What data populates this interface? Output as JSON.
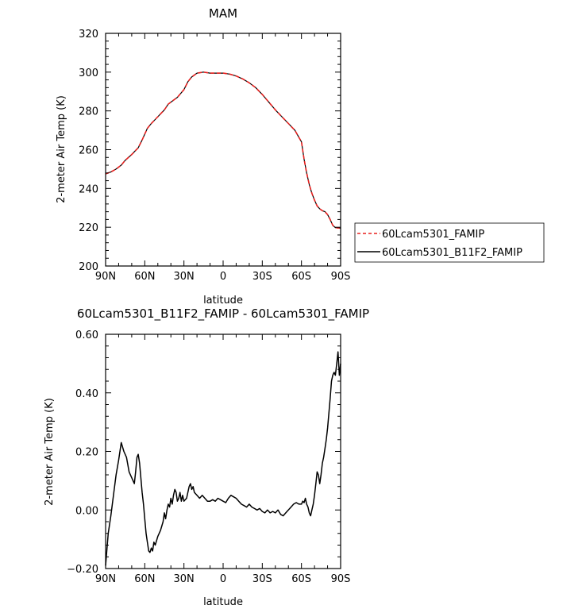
{
  "chart_data": [
    {
      "type": "line",
      "title": "MAM",
      "xlabel": "latitude",
      "ylabel": "2-meter Air Temp (K)",
      "xlim": [
        90,
        -90
      ],
      "ylim": [
        200,
        320
      ],
      "x_ticks": [
        {
          "value": 90,
          "label": "90N"
        },
        {
          "value": 60,
          "label": "60N"
        },
        {
          "value": 30,
          "label": "30N"
        },
        {
          "value": 0,
          "label": "0"
        },
        {
          "value": -30,
          "label": "30S"
        },
        {
          "value": -60,
          "label": "60S"
        },
        {
          "value": -90,
          "label": "90S"
        }
      ],
      "y_ticks": [
        {
          "value": 200,
          "label": "200"
        },
        {
          "value": 220,
          "label": "220"
        },
        {
          "value": 240,
          "label": "240"
        },
        {
          "value": 260,
          "label": "260"
        },
        {
          "value": 280,
          "label": "280"
        },
        {
          "value": 300,
          "label": "300"
        },
        {
          "value": 320,
          "label": "320"
        }
      ],
      "legend": {
        "placement": "right",
        "entries": [
          {
            "name": "60Lcam5301_FAMIP",
            "color": "#e8201e",
            "dash": "dashed"
          },
          {
            "name": "60Lcam5301_B11F2_FAMIP",
            "color": "#000000",
            "dash": "solid"
          }
        ]
      },
      "series": [
        {
          "name": "60Lcam5301_FAMIP",
          "x": [
            90,
            86,
            82,
            78,
            75,
            70,
            65,
            62,
            58,
            55,
            50,
            45,
            42,
            38,
            35,
            30,
            27,
            24,
            20,
            15,
            10,
            5,
            0,
            -5,
            -10,
            -15,
            -20,
            -25,
            -30,
            -35,
            -40,
            -45,
            -50,
            -55,
            -60,
            -62,
            -64,
            -66,
            -68,
            -70,
            -72,
            -74,
            -76,
            -78,
            -80,
            -82,
            -84,
            -86,
            -88,
            -90
          ],
          "y": [
            247.5,
            248.5,
            250,
            252,
            254.5,
            257.5,
            261,
            265,
            271,
            273.5,
            277,
            280.5,
            283.5,
            285.5,
            287,
            291,
            295,
            297.5,
            299.5,
            300,
            299.5,
            299.5,
            299.5,
            299,
            298,
            296.5,
            294.5,
            292,
            288.5,
            284.5,
            280.5,
            277,
            273.5,
            270,
            264,
            255,
            248,
            242,
            237.5,
            234,
            231,
            229.5,
            228.5,
            228,
            226.5,
            224,
            221,
            219.8,
            219.6,
            219.5
          ]
        },
        {
          "name": "60Lcam5301_B11F2_FAMIP",
          "x": [
            90,
            86,
            82,
            78,
            75,
            70,
            65,
            62,
            58,
            55,
            50,
            45,
            42,
            38,
            35,
            30,
            27,
            24,
            20,
            15,
            10,
            5,
            0,
            -5,
            -10,
            -15,
            -20,
            -25,
            -30,
            -35,
            -40,
            -45,
            -50,
            -55,
            -60,
            -62,
            -64,
            -66,
            -68,
            -70,
            -72,
            -74,
            -76,
            -78,
            -80,
            -82,
            -84,
            -86,
            -88,
            -90
          ],
          "y": [
            247.5,
            248.5,
            250,
            252,
            254.5,
            257.5,
            261,
            265,
            271,
            273.5,
            277,
            280.5,
            283.5,
            285.5,
            287,
            291,
            295,
            297.5,
            299.5,
            300,
            299.5,
            299.5,
            299.5,
            299,
            298,
            296.5,
            294.5,
            292,
            288.5,
            284.5,
            280.5,
            277,
            273.5,
            270,
            264,
            255,
            248,
            242,
            237.5,
            234,
            231,
            229.5,
            228.5,
            228,
            226.5,
            224,
            221,
            219.8,
            219.6,
            219.5
          ]
        }
      ]
    },
    {
      "type": "line",
      "title": "60Lcam5301_B11F2_FAMIP - 60Lcam5301_FAMIP",
      "xlabel": "latitude",
      "ylabel": "2-meter Air Temp (K)",
      "xlim": [
        90,
        -90
      ],
      "ylim": [
        -0.2,
        0.6
      ],
      "x_ticks": [
        {
          "value": 90,
          "label": "90N"
        },
        {
          "value": 60,
          "label": "60N"
        },
        {
          "value": 30,
          "label": "30N"
        },
        {
          "value": 0,
          "label": "0"
        },
        {
          "value": -30,
          "label": "30S"
        },
        {
          "value": -60,
          "label": "60S"
        },
        {
          "value": -90,
          "label": "90S"
        }
      ],
      "y_ticks": [
        {
          "value": -0.2,
          "label": "−0.20"
        },
        {
          "value": 0.0,
          "label": "0.00"
        },
        {
          "value": 0.2,
          "label": "0.20"
        },
        {
          "value": 0.4,
          "label": "0.40"
        },
        {
          "value": 0.6,
          "label": "0.60"
        }
      ],
      "series": [
        {
          "name": "",
          "color": "#000000",
          "x": [
            90,
            88,
            86,
            84,
            82,
            80,
            78,
            76,
            74,
            72,
            70,
            68,
            67,
            66,
            65,
            64,
            63,
            62,
            61,
            60,
            59,
            58,
            57,
            56,
            55,
            54,
            53,
            52,
            50,
            48,
            46,
            45,
            44,
            43,
            42,
            41,
            40,
            39,
            38,
            37,
            36,
            35,
            34,
            33,
            32,
            31,
            30,
            29,
            28,
            27,
            26,
            25,
            24,
            23,
            22,
            20,
            18,
            16,
            14,
            12,
            10,
            8,
            6,
            4,
            2,
            0,
            -2,
            -4,
            -6,
            -8,
            -10,
            -12,
            -14,
            -16,
            -18,
            -20,
            -22,
            -24,
            -26,
            -28,
            -30,
            -32,
            -34,
            -36,
            -38,
            -40,
            -42,
            -44,
            -46,
            -48,
            -50,
            -52,
            -54,
            -56,
            -58,
            -60,
            -61,
            -62,
            -63,
            -64,
            -65,
            -66,
            -67,
            -68,
            -69,
            -70,
            -71,
            -72,
            -73,
            -74,
            -75,
            -76,
            -77,
            -78,
            -79,
            -80,
            -81,
            -82,
            -83,
            -84,
            -85,
            -86,
            -87,
            -88,
            -89,
            -90
          ],
          "y": [
            -0.19,
            -0.08,
            -0.02,
            0.05,
            0.12,
            0.17,
            0.23,
            0.2,
            0.18,
            0.13,
            0.11,
            0.09,
            0.13,
            0.18,
            0.19,
            0.16,
            0.11,
            0.06,
            0.02,
            -0.03,
            -0.08,
            -0.11,
            -0.14,
            -0.145,
            -0.13,
            -0.14,
            -0.11,
            -0.12,
            -0.09,
            -0.07,
            -0.04,
            -0.01,
            -0.03,
            0.0,
            0.02,
            0.01,
            0.04,
            0.02,
            0.05,
            0.07,
            0.06,
            0.03,
            0.04,
            0.06,
            0.03,
            0.05,
            0.03,
            0.035,
            0.04,
            0.06,
            0.08,
            0.09,
            0.07,
            0.08,
            0.06,
            0.05,
            0.04,
            0.05,
            0.04,
            0.03,
            0.03,
            0.035,
            0.03,
            0.04,
            0.035,
            0.03,
            0.025,
            0.04,
            0.05,
            0.045,
            0.04,
            0.03,
            0.02,
            0.015,
            0.01,
            0.02,
            0.01,
            0.005,
            0.0,
            0.005,
            -0.005,
            -0.01,
            0.0,
            -0.01,
            -0.005,
            -0.01,
            0.0,
            -0.015,
            -0.02,
            -0.01,
            0.0,
            0.01,
            0.02,
            0.025,
            0.02,
            0.02,
            0.03,
            0.025,
            0.04,
            0.02,
            0.01,
            -0.01,
            -0.02,
            0.0,
            0.02,
            0.05,
            0.09,
            0.13,
            0.12,
            0.09,
            0.12,
            0.16,
            0.18,
            0.21,
            0.24,
            0.28,
            0.33,
            0.38,
            0.44,
            0.46,
            0.47,
            0.46,
            0.5,
            0.54,
            0.46,
            0.5
          ]
        }
      ]
    }
  ]
}
